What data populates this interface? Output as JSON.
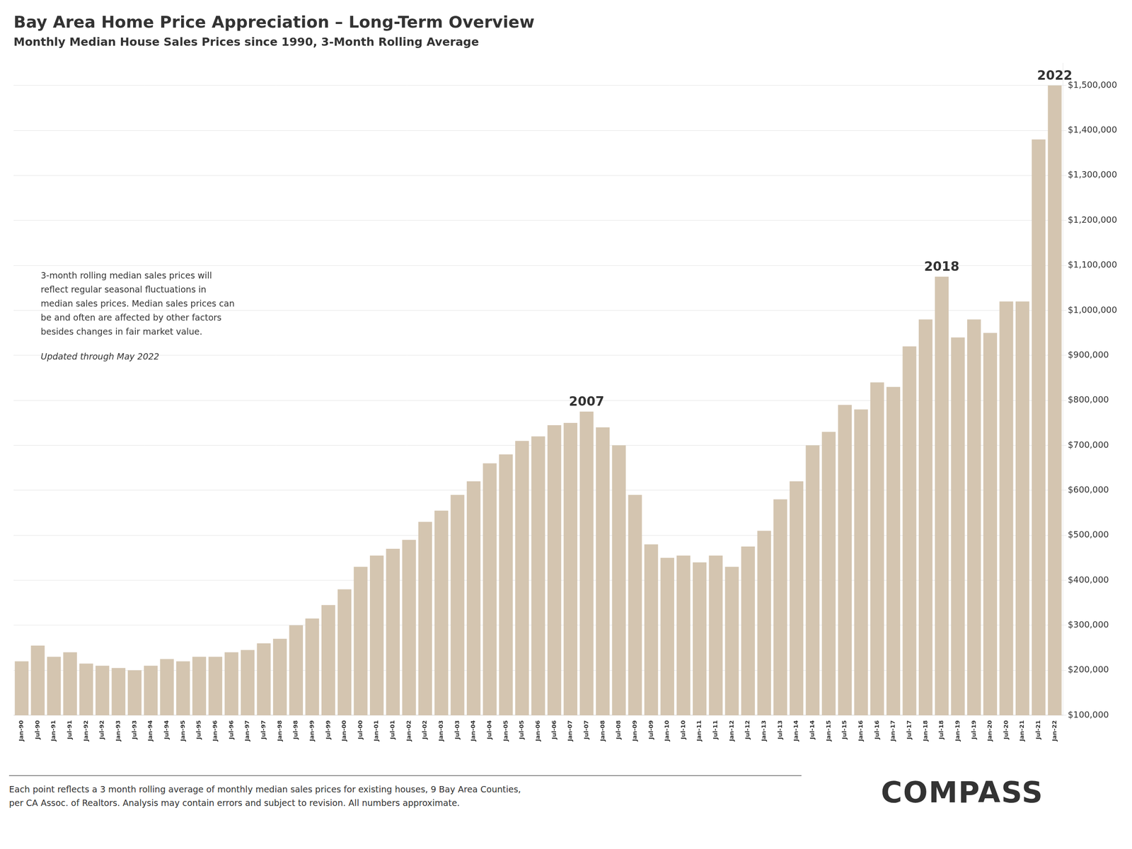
{
  "chart_data": {
    "type": "bar",
    "title": "Bay Area Home Price Appreciation – Long-Term Overview",
    "subtitle": "Monthly Median House Sales Prices since 1990, 3-Month Rolling Average",
    "annotation": "3-month rolling median sales prices will\nreflect regular seasonal fluctuations in\nmedian sales prices. Median sales prices can\nbe and often are affected by other factors\nbesides changes in fair market value.",
    "note": "Updated through May 2022",
    "footer": "Each point reflects a 3 month rolling average of monthly median sales prices for existing houses, 9 Bay Area Counties,\nper CA Assoc. of Realtors. Analysis may contain errors and subject to revision. All numbers approximate.",
    "logo": "COMPASS",
    "bar_labels": [
      {
        "category": "Jul-07",
        "text": "2007"
      },
      {
        "category": "Jul-18",
        "text": "2018"
      },
      {
        "category": "Jan-22",
        "text": "2022"
      }
    ],
    "categories": [
      "Jan-90",
      "Jul-90",
      "Jan-91",
      "Jul-91",
      "Jan-92",
      "Jul-92",
      "Jan-93",
      "Jul-93",
      "Jan-94",
      "Jul-94",
      "Jan-95",
      "Jul-95",
      "Jan-96",
      "Jul-96",
      "Jan-97",
      "Jul-97",
      "Jan-98",
      "Jul-98",
      "Jan-99",
      "Jul-99",
      "Jan-00",
      "Jul-00",
      "Jan-01",
      "Jul-01",
      "Jan-02",
      "Jul-02",
      "Jan-03",
      "Jul-03",
      "Jan-04",
      "Jul-04",
      "Jan-05",
      "Jul-05",
      "Jan-06",
      "Jul-06",
      "Jan-07",
      "Jul-07",
      "Jan-08",
      "Jul-08",
      "Jan-09",
      "Jul-09",
      "Jan-10",
      "Jul-10",
      "Jan-11",
      "Jul-11",
      "Jan-12",
      "Jul-12",
      "Jan-13",
      "Jul-13",
      "Jan-14",
      "Jul-14",
      "Jan-15",
      "Jul-15",
      "Jan-16",
      "Jul-16",
      "Jan-17",
      "Jul-17",
      "Jan-18",
      "Jul-18",
      "Jan-19",
      "Jul-19",
      "Jan-20",
      "Jul-20",
      "Jan-21",
      "Jul-21",
      "Jan-22"
    ],
    "values": [
      220000,
      255000,
      230000,
      240000,
      215000,
      210000,
      205000,
      200000,
      210000,
      225000,
      220000,
      230000,
      230000,
      240000,
      245000,
      260000,
      270000,
      300000,
      315000,
      345000,
      380000,
      430000,
      455000,
      470000,
      490000,
      530000,
      555000,
      590000,
      620000,
      660000,
      680000,
      710000,
      720000,
      745000,
      750000,
      775000,
      740000,
      700000,
      590000,
      480000,
      450000,
      455000,
      440000,
      455000,
      430000,
      475000,
      510000,
      580000,
      620000,
      700000,
      730000,
      790000,
      780000,
      840000,
      830000,
      920000,
      980000,
      1075000,
      940000,
      980000,
      950000,
      1020000,
      1020000,
      1380000,
      1500000
    ],
    "color": "#d4c5b0",
    "ylim": [
      100000,
      1550000
    ],
    "yticks": [
      {
        "value": 100000,
        "label": "$100,000"
      },
      {
        "value": 200000,
        "label": "$200,000"
      },
      {
        "value": 300000,
        "label": "$300,000"
      },
      {
        "value": 400000,
        "label": "$400,000"
      },
      {
        "value": 500000,
        "label": "$500,000"
      },
      {
        "value": 600000,
        "label": "$600,000"
      },
      {
        "value": 700000,
        "label": "$700,000"
      },
      {
        "value": 800000,
        "label": "$800,000"
      },
      {
        "value": 900000,
        "label": "$900,000"
      },
      {
        "value": 1000000,
        "label": "$1,000,000"
      },
      {
        "value": 1100000,
        "label": "$1,100,000"
      },
      {
        "value": 1200000,
        "label": "$1,200,000"
      },
      {
        "value": 1300000,
        "label": "$1,300,000"
      },
      {
        "value": 1400000,
        "label": "$1,400,000"
      },
      {
        "value": 1500000,
        "label": "$1,500,000"
      }
    ],
    "grid": true
  }
}
